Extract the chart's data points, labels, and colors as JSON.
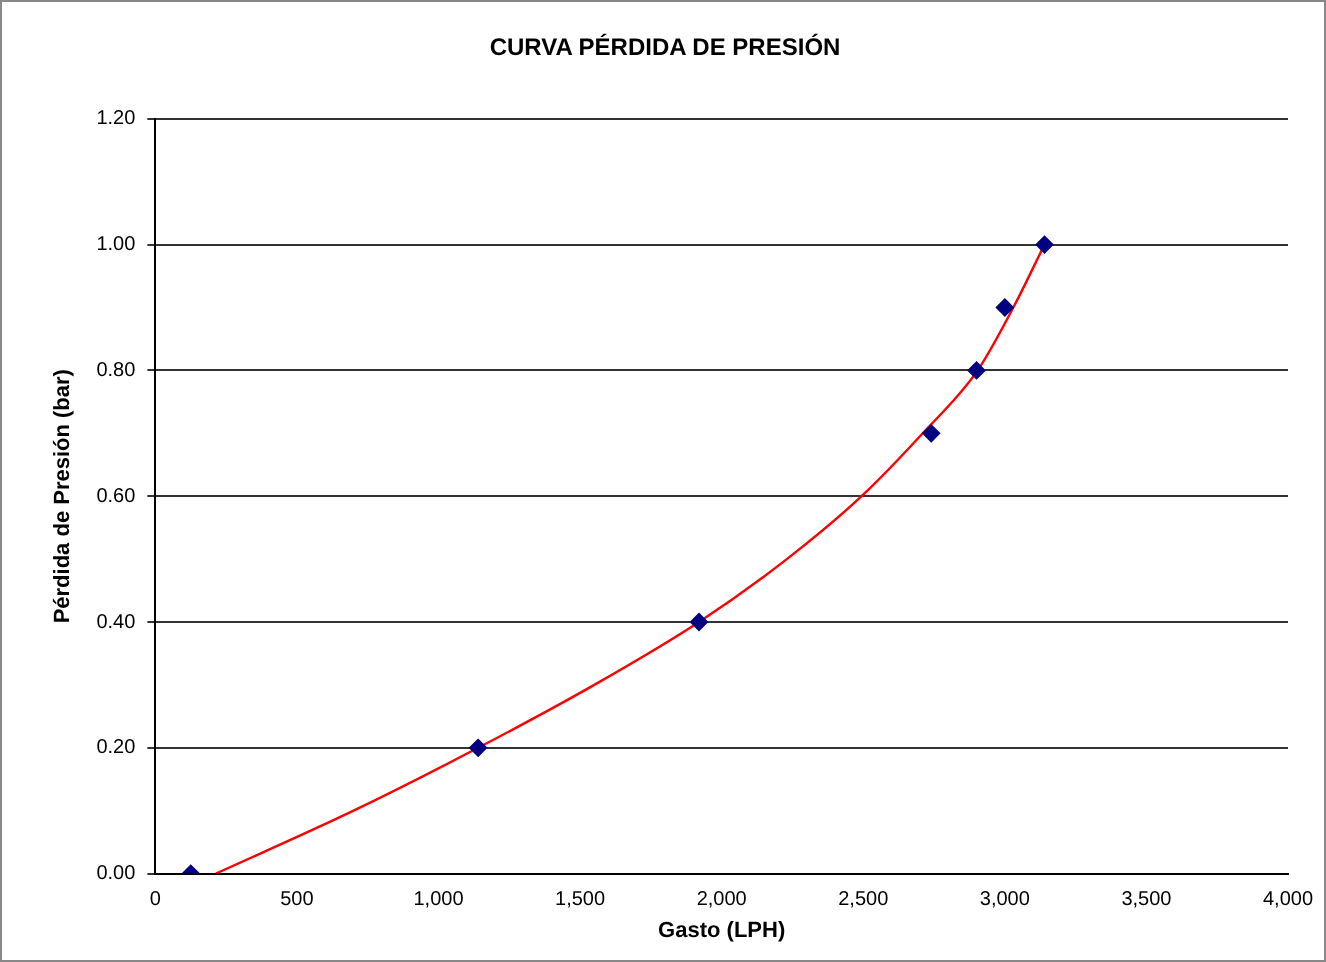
{
  "chart_data": {
    "type": "scatter",
    "title": "CURVA PÉRDIDA DE PRESIÓN",
    "xlabel": "Gasto (LPH)",
    "ylabel": "Pérdida de Presión (bar)",
    "series": [
      {
        "color": "#000080",
        "marker": "diamond",
        "x": [
          125,
          1140,
          1920,
          2740,
          2900,
          3000,
          3140
        ],
        "values": [
          0,
          0.2,
          0.4,
          0.7,
          0.8,
          0.9,
          1.0
        ]
      },
      {
        "type": "line",
        "color": "#ff0000",
        "marker": "none",
        "x": [
          214,
          700,
          1140,
          1550,
          1920,
          2230,
          2494,
          2710,
          2904,
          3030,
          3140
        ],
        "values": [
          0,
          0.1,
          0.2,
          0.3,
          0.4,
          0.5,
          0.6,
          0.7,
          0.8,
          0.9,
          1.0
        ]
      }
    ],
    "xlim": [
      0,
      4000
    ],
    "xticks": [
      0,
      500,
      {
        "value": 1000,
        "label": "1,000"
      },
      {
        "value": 1500,
        "label": "1,500"
      },
      {
        "value": 2000,
        "label": "2,000"
      },
      {
        "value": 2500,
        "label": "2,500"
      },
      {
        "value": 3000,
        "label": "3,000"
      },
      {
        "value": 3500,
        "label": "3,500"
      },
      {
        "value": 4000,
        "label": "4,000"
      }
    ],
    "ylim": [
      0,
      1.2
    ],
    "yticks": [
      {
        "value": 0,
        "label": "0.00"
      },
      {
        "value": 0.2,
        "label": "0.20"
      },
      {
        "value": 0.4,
        "label": "0.40"
      },
      {
        "value": 0.6,
        "label": "0.60"
      },
      {
        "value": 0.8,
        "label": "0.80"
      },
      {
        "value": 1.0,
        "label": "1.00"
      },
      {
        "value": 1.2,
        "label": "1.20"
      }
    ],
    "grid": "y",
    "legend": false
  }
}
